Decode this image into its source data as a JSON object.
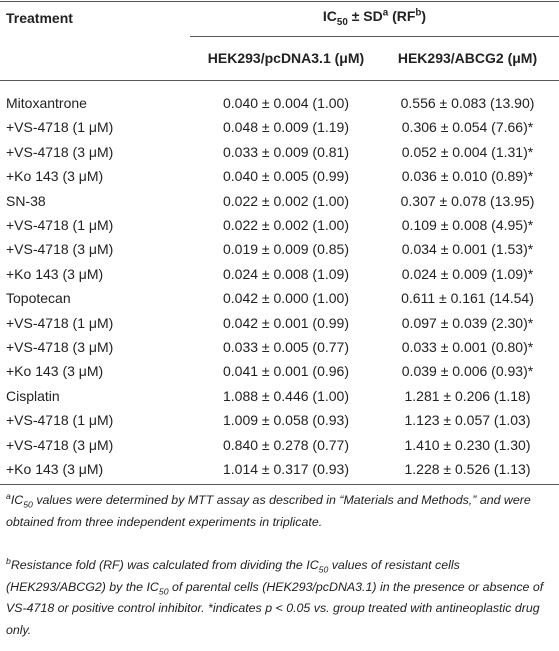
{
  "table": {
    "header": {
      "treatment": "Treatment",
      "group": [
        "IC",
        "50",
        " ± SD",
        "a",
        " (RF",
        "b",
        ")"
      ],
      "columns": [
        "HEK293/pcDNA3.1 (μM)",
        "HEK293/ABCG2 (μM)"
      ]
    },
    "rows": [
      [
        "Mitoxantrone",
        "0.040 ± 0.004 (1.00)",
        "0.556 ± 0.083 (13.90)"
      ],
      [
        "+VS-4718 (1 μM)",
        "0.048 ± 0.009 (1.19)",
        "0.306 ± 0.054 (7.66)*"
      ],
      [
        "+VS-4718 (3 μM)",
        "0.033 ± 0.009 (0.81)",
        "0.052 ± 0.004 (1.31)*"
      ],
      [
        "+Ko 143 (3 μM)",
        "0.040 ± 0.005 (0.99)",
        "0.036 ± 0.010 (0.89)*"
      ],
      [
        "SN-38",
        "0.022 ± 0.002 (1.00)",
        "0.307 ± 0.078 (13.95)"
      ],
      [
        "+VS-4718 (1 μM)",
        "0.022 ± 0.002 (1.00)",
        "0.109 ± 0.008 (4.95)*"
      ],
      [
        "+VS-4718 (3 μM)",
        "0.019 ± 0.009 (0.85)",
        "0.034 ± 0.001 (1.53)*"
      ],
      [
        "+Ko 143 (3 μM)",
        "0.024 ± 0.008 (1.09)",
        "0.024 ± 0.009 (1.09)*"
      ],
      [
        "Topotecan",
        "0.042 ± 0.000 (1.00)",
        "0.611 ± 0.161 (14.54)"
      ],
      [
        "+VS-4718 (1 μM)",
        "0.042 ± 0.001 (0.99)",
        "0.097 ± 0.039 (2.30)*"
      ],
      [
        "+VS-4718 (3 μM)",
        "0.033 ± 0.005 (0.77)",
        "0.033 ± 0.001 (0.80)*"
      ],
      [
        "+Ko 143 (3 μM)",
        "0.041 ± 0.001 (0.96)",
        "0.039 ± 0.006 (0.93)*"
      ],
      [
        "Cisplatin",
        "1.088 ± 0.446 (1.00)",
        "1.281 ± 0.206 (1.18)"
      ],
      [
        "+VS-4718 (1 μM)",
        "1.009 ± 0.058 (0.93)",
        "1.123 ± 0.057 (1.03)"
      ],
      [
        "+VS-4718 (3 μM)",
        "0.840 ± 0.278 (0.77)",
        "1.410 ± 0.230 (1.30)"
      ],
      [
        "+Ko 143 (3 μM)",
        "1.014 ± 0.317 (0.93)",
        "1.228 ± 0.526 (1.13)"
      ]
    ]
  },
  "footnotes": [
    [
      "a",
      "IC",
      "50",
      " values were determined by MTT assay as described in “Materials and Methods,” and were obtained from three independent experiments in triplicate."
    ],
    [
      "b",
      "Resistance fold (RF) was calculated from dividing the IC",
      "50",
      " values of resistant cells (HEK293/ABCG2) by the IC",
      "50",
      " of parental cells (HEK293/pcDNA3.1) in the presence or absence of VS-4718 or positive control inhibitor. *indicates p < 0.05 vs. group treated with antineoplastic drug only."
    ]
  ]
}
